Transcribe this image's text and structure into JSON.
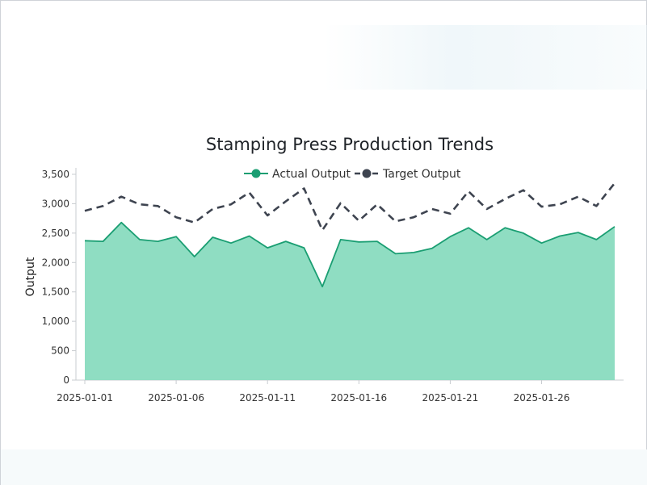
{
  "chart_data": {
    "type": "area",
    "title": "Stamping Press Production Trends",
    "xlabel": "",
    "ylabel": "Output",
    "ylim": [
      0,
      3500
    ],
    "yticks": [
      0,
      500,
      1000,
      1500,
      2000,
      2500,
      3000,
      3500
    ],
    "ytick_labels": [
      "0",
      "500",
      "1,000",
      "1,500",
      "2,000",
      "2,500",
      "3,000",
      "3,500"
    ],
    "xtick_labels": [
      "2025-01-01",
      "2025-01-06",
      "2025-01-11",
      "2025-01-16",
      "2025-01-21",
      "2025-01-26"
    ],
    "x": [
      "2025-01-01",
      "2025-01-02",
      "2025-01-03",
      "2025-01-04",
      "2025-01-05",
      "2025-01-06",
      "2025-01-07",
      "2025-01-08",
      "2025-01-09",
      "2025-01-10",
      "2025-01-11",
      "2025-01-12",
      "2025-01-13",
      "2025-01-14",
      "2025-01-15",
      "2025-01-16",
      "2025-01-17",
      "2025-01-18",
      "2025-01-19",
      "2025-01-20",
      "2025-01-21",
      "2025-01-22",
      "2025-01-23",
      "2025-01-24",
      "2025-01-25",
      "2025-01-26",
      "2025-01-27",
      "2025-01-28",
      "2025-01-29",
      "2025-01-30"
    ],
    "legend_position": "top-center",
    "grid": false,
    "series": [
      {
        "name": "Actual Output",
        "style": "area",
        "color": "#1a9e72",
        "fill": "#8fddc2",
        "values": [
          2370,
          2360,
          2680,
          2390,
          2360,
          2440,
          2100,
          2430,
          2330,
          2450,
          2250,
          2360,
          2250,
          1590,
          2390,
          2350,
          2360,
          2150,
          2170,
          2240,
          2440,
          2590,
          2390,
          2590,
          2500,
          2330,
          2450,
          2510,
          2390,
          2610
        ]
      },
      {
        "name": "Target Output",
        "style": "dashed-line",
        "color": "#3e4450",
        "values": [
          2880,
          2960,
          3120,
          2990,
          2960,
          2770,
          2680,
          2910,
          2990,
          3190,
          2800,
          3040,
          3260,
          2550,
          3010,
          2710,
          2990,
          2700,
          2770,
          2910,
          2830,
          3210,
          2910,
          3080,
          3230,
          2950,
          2990,
          3120,
          2960,
          3350
        ]
      }
    ]
  }
}
